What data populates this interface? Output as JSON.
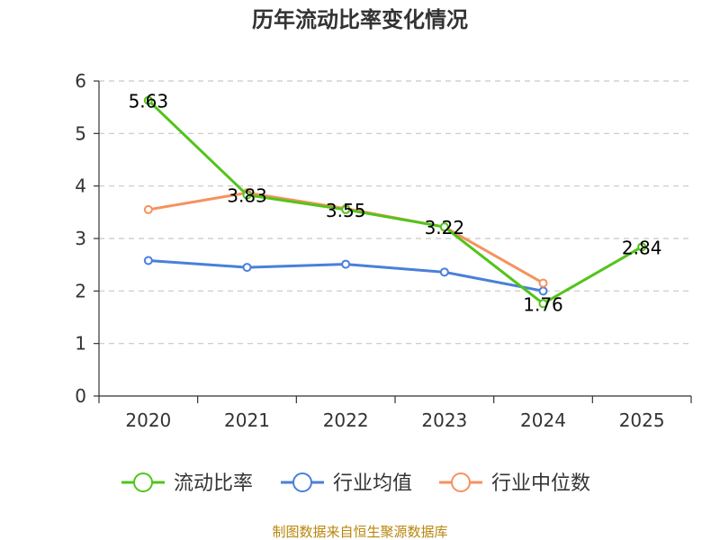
{
  "chart_data": {
    "type": "line",
    "title": "历年流动比率变化情况",
    "categories": [
      "2020",
      "2021",
      "2022",
      "2023",
      "2024",
      "2025"
    ],
    "yticks": [
      "0",
      "1",
      "2",
      "3",
      "4",
      "5",
      "6"
    ],
    "ylim": [
      0,
      6
    ],
    "grid": true,
    "legend_position": "bottom",
    "series": [
      {
        "name": "流动比率",
        "color": "#52c41a",
        "values": [
          5.63,
          3.83,
          3.55,
          3.22,
          1.76,
          2.84
        ],
        "labels": [
          "5.63",
          "3.83",
          "3.55",
          "3.22",
          "1.76",
          "2.84"
        ]
      },
      {
        "name": "行业均值",
        "color": "#4a7fdb",
        "values": [
          2.58,
          2.45,
          2.51,
          2.36,
          2.0,
          null
        ]
      },
      {
        "name": "行业中位数",
        "color": "#f5925e",
        "values": [
          3.55,
          3.87,
          3.57,
          3.22,
          2.15,
          null
        ]
      }
    ],
    "source": "制图数据来自恒生聚源数据库",
    "source_color": "#b8860b"
  }
}
